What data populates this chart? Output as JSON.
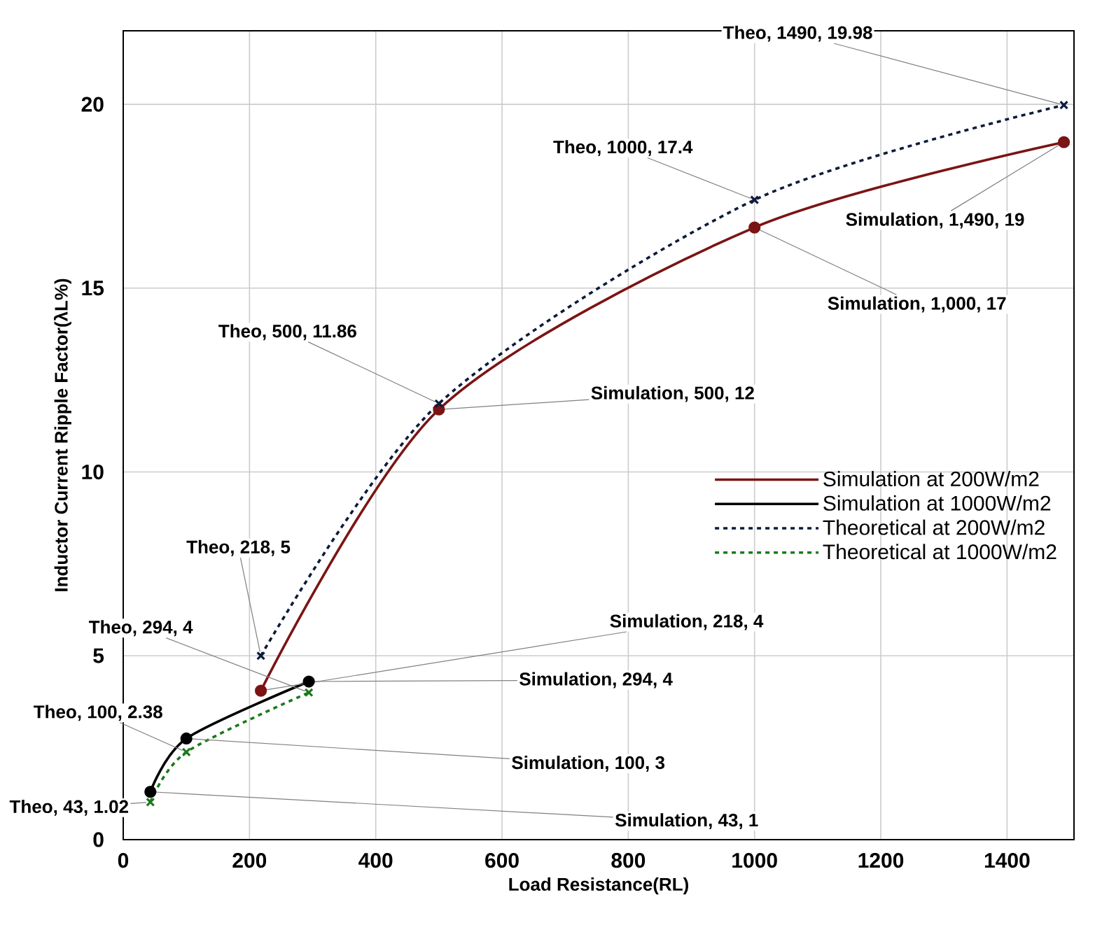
{
  "chart_data": {
    "type": "line",
    "xlabel": "Load Resistance(RL)",
    "ylabel": "Inductor Current Ripple Factor(λL%)",
    "xlim": [
      0,
      1506
    ],
    "ylim": [
      0,
      22
    ],
    "xticks": [
      0,
      200,
      400,
      600,
      800,
      1000,
      1200,
      1400
    ],
    "yticks": [
      0,
      5,
      10,
      15,
      20
    ],
    "grid": true,
    "legend": "right",
    "series": [
      {
        "name": "Simulation at 200W/m2",
        "color": "#7b1414",
        "marker": "circle",
        "line_style": "solid",
        "x": [
          218,
          500,
          1000,
          1490
        ],
        "values": [
          4.05,
          11.7,
          16.65,
          18.97
        ]
      },
      {
        "name": "Simulation at 1000W/m2",
        "color": "#000000",
        "marker": "circle",
        "line_style": "solid",
        "x": [
          43,
          100,
          294
        ],
        "values": [
          1.3,
          2.75,
          4.3
        ]
      },
      {
        "name": "Theoretical at 200W/m2",
        "color": "#0d1b3a",
        "marker": "cross",
        "line_style": "dashed",
        "x": [
          218,
          500,
          1000,
          1490
        ],
        "values": [
          5,
          11.86,
          17.4,
          19.98
        ]
      },
      {
        "name": "Theoretical at 1000W/m2",
        "color": "#1a7a1a",
        "marker": "cross",
        "line_style": "dashed",
        "x": [
          43,
          100,
          294
        ],
        "values": [
          1.02,
          2.38,
          4
        ]
      }
    ],
    "annotations": [
      {
        "text": "Theo, 1490, 19.98",
        "x": 1490,
        "y": 19.98
      },
      {
        "text": "Theo, 1000, 17.4",
        "x": 1000,
        "y": 17.4
      },
      {
        "text": "Simulation, 1,490, 19",
        "x": 1490,
        "y": 18.97
      },
      {
        "text": "Simulation, 1,000, 17",
        "x": 1000,
        "y": 16.65
      },
      {
        "text": "Theo, 500, 11.86",
        "x": 500,
        "y": 11.86
      },
      {
        "text": "Simulation, 500, 12",
        "x": 500,
        "y": 11.7
      },
      {
        "text": "Theo, 218, 5",
        "x": 218,
        "y": 5
      },
      {
        "text": "Theo, 294, 4",
        "x": 294,
        "y": 4
      },
      {
        "text": "Simulation, 218, 4",
        "x": 218,
        "y": 4.05
      },
      {
        "text": "Simulation, 294, 4",
        "x": 294,
        "y": 4.3
      },
      {
        "text": "Theo, 100, 2.38",
        "x": 100,
        "y": 2.38
      },
      {
        "text": "Simulation, 100, 3",
        "x": 100,
        "y": 2.75
      },
      {
        "text": "Theo, 43, 1.02",
        "x": 43,
        "y": 1.02
      },
      {
        "text": "Simulation, 43, 1",
        "x": 43,
        "y": 1.3
      }
    ]
  }
}
